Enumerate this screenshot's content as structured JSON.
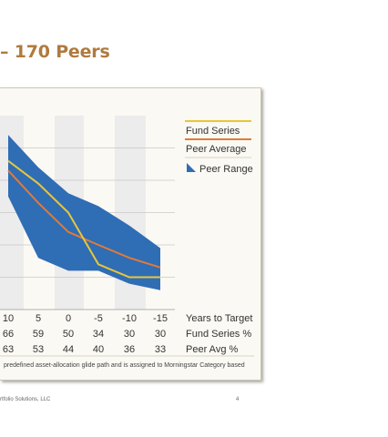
{
  "slide": {
    "title": "– 170 Peers",
    "footer_left": "rtfolio Solutions, LLC",
    "page_number": "4"
  },
  "colors": {
    "title": "#b07a3e",
    "fund_series": "#e8c63a",
    "peer_average": "#e07b39",
    "peer_range": "#2f6db5",
    "grid_band": "#ececec"
  },
  "legend": {
    "fund_series": "Fund Series",
    "peer_average": "Peer Average",
    "peer_range": "Peer Range"
  },
  "table": {
    "row_labels": [
      "Years to Target",
      "Fund Series %",
      "Peer Avg %"
    ],
    "columns": [
      {
        "years": "10",
        "fund": "66",
        "peer": "63"
      },
      {
        "years": "5",
        "fund": "59",
        "peer": "53"
      },
      {
        "years": "0",
        "fund": "50",
        "peer": "44"
      },
      {
        "years": "-5",
        "fund": "34",
        "peer": "40"
      },
      {
        "years": "-10",
        "fund": "30",
        "peer": "36"
      },
      {
        "years": "-15",
        "fund": "30",
        "peer": "33"
      }
    ]
  },
  "note": "predefined asset-allocation glide path and is assigned to Morningstar Category based",
  "chart_data": {
    "type": "line",
    "x": [
      10,
      5,
      0,
      -5,
      -10,
      -15
    ],
    "series": [
      {
        "name": "Fund Series",
        "values": [
          66,
          59,
          50,
          34,
          30,
          30
        ]
      },
      {
        "name": "Peer Average",
        "values": [
          63,
          53,
          44,
          40,
          36,
          33
        ]
      }
    ],
    "range": {
      "name": "Peer Range",
      "upper": [
        74,
        64,
        56,
        52,
        46,
        39
      ],
      "lower": [
        55,
        36,
        32,
        32,
        28,
        26
      ]
    },
    "xlabel": "Years to Target",
    "ylim": [
      20,
      80
    ],
    "grid": true
  }
}
